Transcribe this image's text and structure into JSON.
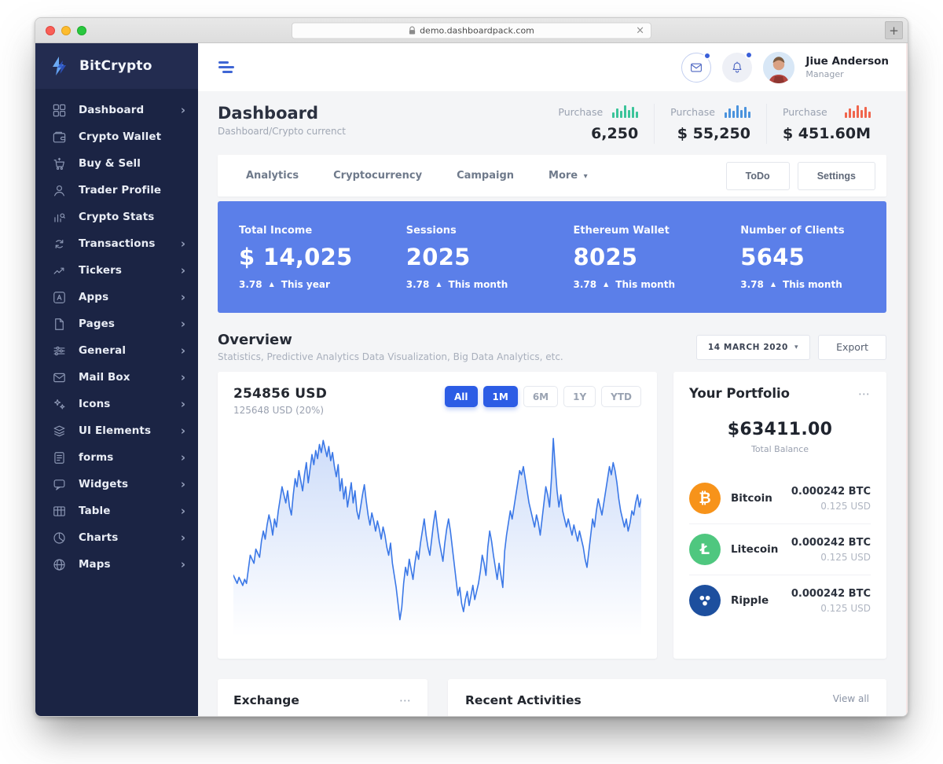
{
  "browser": {
    "url": "demo.dashboardpack.com",
    "clear_icon": "×",
    "new_tab_icon": "+"
  },
  "glyphs": {
    "chevron_right": "›",
    "caret_down": "▾",
    "up_arrow": "▲",
    "ellipsis": "⋯"
  },
  "colors": {
    "accent_blue": "#2c5ce5",
    "banner_blue": "#5b7fe9",
    "sidebar_navy": "#1b2444",
    "spark_green": "#3bc49a",
    "spark_blue": "#4a93dd",
    "spark_orange": "#f0654c",
    "chart_line": "#3b78e7"
  },
  "sidebar": {
    "brand": "BitCrypto",
    "items": [
      {
        "label": "Dashboard",
        "icon": "dashboard-grid-icon",
        "chevron": true
      },
      {
        "label": "Crypto Wallet",
        "icon": "wallet-icon",
        "chevron": false
      },
      {
        "label": "Buy & Sell",
        "icon": "cart-icon",
        "chevron": false
      },
      {
        "label": "Trader Profile",
        "icon": "user-icon",
        "chevron": false
      },
      {
        "label": "Crypto Stats",
        "icon": "stats-icon",
        "chevron": false
      },
      {
        "label": "Transactions",
        "icon": "transactions-icon",
        "chevron": true
      },
      {
        "label": "Tickers",
        "icon": "trending-icon",
        "chevron": true
      },
      {
        "label": "Apps",
        "icon": "apps-icon",
        "chevron": true
      },
      {
        "label": "Pages",
        "icon": "pages-icon",
        "chevron": true
      },
      {
        "label": "General",
        "icon": "sliders-icon",
        "chevron": true
      },
      {
        "label": "Mail Box",
        "icon": "mail-icon",
        "chevron": true
      },
      {
        "label": "Icons",
        "icon": "sparkles-icon",
        "chevron": true
      },
      {
        "label": "UI Elements",
        "icon": "layers-icon",
        "chevron": true
      },
      {
        "label": "forms",
        "icon": "form-icon",
        "chevron": true
      },
      {
        "label": "Widgets",
        "icon": "widgets-icon",
        "chevron": true
      },
      {
        "label": "Table",
        "icon": "table-icon",
        "chevron": true
      },
      {
        "label": "Charts",
        "icon": "pie-chart-icon",
        "chevron": true
      },
      {
        "label": "Maps",
        "icon": "globe-icon",
        "chevron": true
      }
    ]
  },
  "header": {
    "user_name": "Jiue Anderson",
    "user_role": "Manager"
  },
  "page": {
    "title": "Dashboard",
    "breadcrumb": "Dashboard/Crypto currenct"
  },
  "purchases": [
    {
      "label": "Purchase",
      "value": "6,250",
      "color": "#3bc49a"
    },
    {
      "label": "Purchase",
      "value": "$ 55,250",
      "color": "#4a93dd"
    },
    {
      "label": "Purchase",
      "value": "$ 451.60M",
      "color": "#f0654c"
    }
  ],
  "tabs": {
    "items": [
      "Analytics",
      "Cryptocurrency",
      "Campaign"
    ],
    "more": "More",
    "todo": "ToDo",
    "settings": "Settings"
  },
  "banner_stats": [
    {
      "label": "Total Income",
      "value": "$ 14,025",
      "delta": "3.78",
      "period": "This year"
    },
    {
      "label": "Sessions",
      "value": "2025",
      "delta": "3.78",
      "period": "This month"
    },
    {
      "label": "Ethereum Wallet",
      "value": "8025",
      "delta": "3.78",
      "period": "This month"
    },
    {
      "label": "Number of Clients",
      "value": "5645",
      "delta": "3.78",
      "period": "This month"
    }
  ],
  "overview": {
    "title": "Overview",
    "subtitle": "Statistics, Predictive Analytics Data Visualization, Big Data Analytics, etc.",
    "date_filter": "14 MARCH 2020",
    "export_label": "Export"
  },
  "chart_card": {
    "value": "254856 USD",
    "sub": "125648 USD (20%)",
    "ranges": [
      {
        "label": "All",
        "active": true
      },
      {
        "label": "1M",
        "active": true
      },
      {
        "label": "6M",
        "active": false
      },
      {
        "label": "1Y",
        "active": false
      },
      {
        "label": "YTD",
        "active": false
      }
    ]
  },
  "portfolio": {
    "title": "Your Portfolio",
    "balance": "$63411.00",
    "balance_label": "Total Balance",
    "coins": [
      {
        "name": "Bitcoin",
        "amount": "0.000242 BTC",
        "usd": "0.125 USD",
        "color": "#f7931a",
        "symbol": "₿"
      },
      {
        "name": "Litecoin",
        "amount": "0.000242 BTC",
        "usd": "0.125 USD",
        "color": "#4fc77f",
        "symbol": "Ł"
      },
      {
        "name": "Ripple",
        "amount": "0.000242 BTC",
        "usd": "0.125 USD",
        "color": "#1d4f9e",
        "symbol": ""
      }
    ]
  },
  "bottom": {
    "exchange_title": "Exchange",
    "recent_title": "Recent Activities",
    "view_all": "View all"
  },
  "chart_data": [
    {
      "type": "area",
      "title": "254856 USD",
      "subtitle": "125648 USD (20%)",
      "selected_ranges": [
        "All",
        "1M"
      ],
      "grid": false,
      "axes_labeled": false,
      "ylim": [
        0,
        100
      ],
      "line_color": "#3b78e7",
      "fill": "blue gradient fading to transparent",
      "values": [
        30,
        28,
        26,
        29,
        27,
        25,
        28,
        26,
        33,
        40,
        38,
        36,
        43,
        41,
        39,
        47,
        52,
        48,
        55,
        60,
        56,
        50,
        58,
        54,
        62,
        68,
        74,
        70,
        66,
        72,
        64,
        60,
        70,
        78,
        74,
        82,
        77,
        72,
        80,
        86,
        76,
        83,
        90,
        85,
        92,
        88,
        95,
        91,
        97,
        93,
        89,
        94,
        87,
        91,
        84,
        79,
        85,
        72,
        78,
        68,
        74,
        64,
        70,
        76,
        66,
        72,
        62,
        58,
        64,
        70,
        75,
        67,
        60,
        55,
        61,
        57,
        52,
        57,
        53,
        48,
        54,
        50,
        44,
        40,
        46,
        36,
        30,
        24,
        16,
        8,
        14,
        26,
        34,
        30,
        38,
        33,
        28,
        36,
        42,
        38,
        46,
        52,
        58,
        50,
        44,
        40,
        48,
        56,
        62,
        54,
        47,
        42,
        37,
        46,
        53,
        58,
        52,
        44,
        36,
        28,
        20,
        24,
        16,
        12,
        18,
        22,
        15,
        20,
        25,
        18,
        22,
        26,
        32,
        40,
        36,
        30,
        44,
        52,
        47,
        40,
        34,
        28,
        36,
        30,
        24,
        42,
        50,
        56,
        62,
        58,
        64,
        70,
        76,
        82,
        80,
        84,
        78,
        72,
        66,
        62,
        58,
        54,
        60,
        56,
        50,
        58,
        66,
        74,
        70,
        64,
        78,
        98,
        84,
        72,
        64,
        70,
        62,
        58,
        54,
        58,
        54,
        50,
        55,
        51,
        47,
        52,
        48,
        44,
        38,
        34,
        42,
        50,
        58,
        54,
        62,
        68,
        64,
        60,
        66,
        72,
        78,
        84,
        80,
        86,
        82,
        76,
        68,
        62,
        58,
        54,
        58,
        52,
        56,
        62,
        60,
        66,
        70,
        64,
        68
      ]
    },
    {
      "type": "bar",
      "name": "purchase-sparkline-green",
      "values": [
        7,
        12,
        9,
        16,
        10,
        14,
        8
      ],
      "color": "#3bc49a"
    },
    {
      "type": "bar",
      "name": "purchase-sparkline-blue",
      "values": [
        7,
        12,
        9,
        16,
        10,
        14,
        8
      ],
      "color": "#4a93dd"
    },
    {
      "type": "bar",
      "name": "purchase-sparkline-orange",
      "values": [
        7,
        12,
        9,
        16,
        10,
        14,
        8
      ],
      "color": "#f0654c"
    }
  ]
}
